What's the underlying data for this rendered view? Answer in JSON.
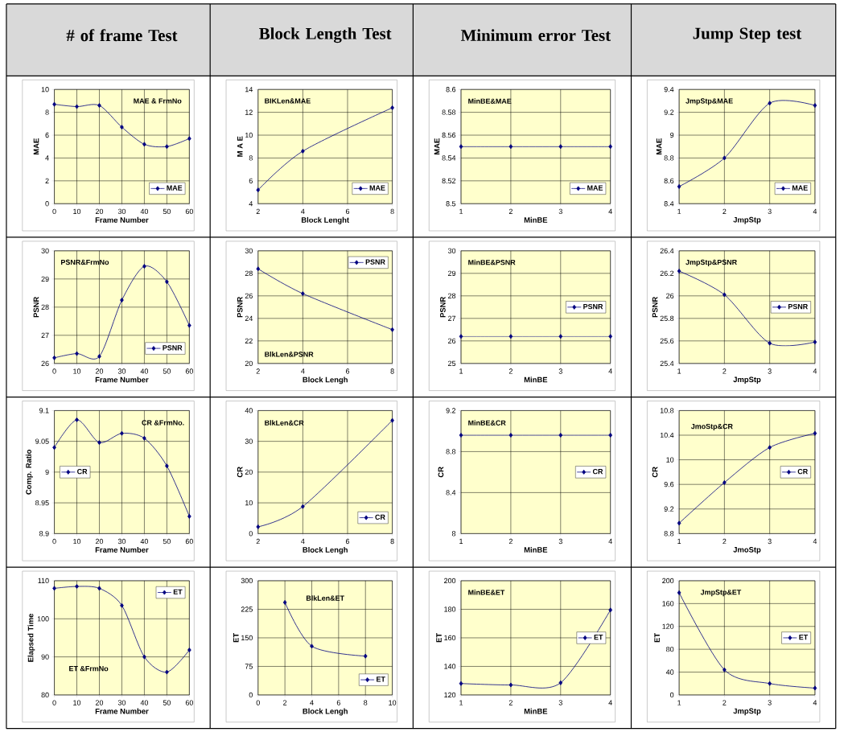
{
  "chart_data": [
    {
      "type": "line",
      "title": "# of frame Test",
      "xlabel": "Frame Number",
      "ylabel": "MAE",
      "annotations": [
        "MAE & FrmNo"
      ],
      "x": [
        0,
        10,
        20,
        30,
        40,
        50,
        60
      ],
      "xlim": [
        0,
        60
      ],
      "xticks": [
        0,
        10,
        20,
        30,
        40,
        50,
        60
      ],
      "ylim": [
        0,
        10
      ],
      "yticks": [
        0,
        2,
        4,
        6,
        8,
        10
      ],
      "grid": true,
      "legend": "bottom right",
      "marker": "diamond",
      "series": [
        {
          "name": "MAE",
          "color": "#000080",
          "values": [
            8.7,
            8.5,
            8.6,
            6.7,
            5.2,
            5.0,
            5.7
          ]
        }
      ]
    },
    {
      "type": "line",
      "title": "Block Length Test",
      "xlabel": "Block Lenght",
      "ylabel": "M A E",
      "annotations": [
        "BIKLen&MAE"
      ],
      "x": [
        2,
        4,
        8
      ],
      "xlim": [
        2,
        8
      ],
      "xticks": [
        2,
        4,
        6,
        8
      ],
      "ylim": [
        4,
        14
      ],
      "yticks": [
        4,
        6,
        8,
        10,
        12,
        14
      ],
      "grid": true,
      "legend": "bottom right",
      "marker": "diamond",
      "series": [
        {
          "name": "MAE",
          "color": "#000080",
          "values": [
            5.2,
            8.6,
            12.4
          ]
        }
      ]
    },
    {
      "type": "line",
      "title": "Minimum error Test",
      "xlabel": "MinBE",
      "ylabel": "MAE",
      "annotations": [
        "MinBE&MAE"
      ],
      "x": [
        1,
        2,
        3,
        4
      ],
      "xlim": [
        1,
        4
      ],
      "xticks": [
        1,
        2,
        3,
        4
      ],
      "ylim": [
        8.5,
        8.6
      ],
      "yticks": [
        8.5,
        8.52,
        8.54,
        8.56,
        8.58,
        8.6
      ],
      "grid": true,
      "legend": "bottom right",
      "marker": "diamond",
      "series": [
        {
          "name": "MAE",
          "color": "#000080",
          "values": [
            8.55,
            8.55,
            8.55,
            8.55
          ]
        }
      ]
    },
    {
      "type": "line",
      "title": "Jump Step test",
      "xlabel": "JmpStp",
      "ylabel": "MAE",
      "annotations": [
        "JmpStp&MAE"
      ],
      "x": [
        1,
        2,
        3,
        4
      ],
      "xlim": [
        1,
        4
      ],
      "xticks": [
        1,
        2,
        3,
        4
      ],
      "ylim": [
        8.4,
        9.4
      ],
      "yticks": [
        8.4,
        8.6,
        8.8,
        9,
        9.2,
        9.4
      ],
      "grid": true,
      "legend": "bottom right",
      "marker": "diamond",
      "series": [
        {
          "name": "MAE",
          "color": "#000080",
          "values": [
            8.55,
            8.8,
            9.28,
            9.26
          ]
        }
      ]
    },
    {
      "type": "line",
      "xlabel": "Frame Number",
      "ylabel": "PSNR",
      "annotations": [
        "PSNR&FrmNo"
      ],
      "x": [
        0,
        10,
        20,
        30,
        40,
        50,
        60
      ],
      "xlim": [
        0,
        60
      ],
      "xticks": [
        0,
        10,
        20,
        30,
        40,
        50,
        60
      ],
      "ylim": [
        26,
        30
      ],
      "yticks": [
        26,
        27,
        28,
        29,
        30
      ],
      "grid": true,
      "legend": "bottom right",
      "marker": "diamond",
      "series": [
        {
          "name": "PSNR",
          "color": "#000080",
          "values": [
            26.2,
            26.35,
            26.25,
            28.25,
            29.45,
            28.9,
            27.35
          ]
        }
      ]
    },
    {
      "type": "line",
      "xlabel": "Block Lengh",
      "ylabel": "PSNR",
      "annotations": [
        "BlkLen&PSNR"
      ],
      "x": [
        2,
        4,
        8
      ],
      "xlim": [
        2,
        8
      ],
      "xticks": [
        2,
        4,
        6,
        8
      ],
      "ylim": [
        20,
        30
      ],
      "yticks": [
        20,
        22,
        24,
        26,
        28,
        30
      ],
      "grid": true,
      "legend": "top right",
      "marker": "diamond",
      "series": [
        {
          "name": "PSNR",
          "color": "#000080",
          "values": [
            28.4,
            26.2,
            23.0
          ]
        }
      ]
    },
    {
      "type": "line",
      "xlabel": "MinBE",
      "ylabel": "PSNR",
      "annotations": [
        "MinBE&PSNR"
      ],
      "x": [
        1,
        2,
        3,
        4
      ],
      "xlim": [
        1,
        4
      ],
      "xticks": [
        1,
        2,
        3,
        4
      ],
      "ylim": [
        25,
        30
      ],
      "yticks": [
        25,
        26,
        27,
        28,
        29,
        30
      ],
      "grid": true,
      "legend": "right",
      "marker": "diamond",
      "series": [
        {
          "name": "PSNR",
          "color": "#000080",
          "values": [
            26.2,
            26.2,
            26.2,
            26.2
          ]
        }
      ]
    },
    {
      "type": "line",
      "xlabel": "JmpStp",
      "ylabel": "PSNR",
      "annotations": [
        "JmpStp&PSNR"
      ],
      "x": [
        1,
        2,
        3,
        4
      ],
      "xlim": [
        1,
        4
      ],
      "xticks": [
        1,
        2,
        3,
        4
      ],
      "ylim": [
        25.4,
        26.4
      ],
      "yticks": [
        25.4,
        25.6,
        25.8,
        26,
        26.2,
        26.4
      ],
      "grid": true,
      "legend": "right",
      "marker": "diamond",
      "series": [
        {
          "name": "PSNR",
          "color": "#000080",
          "values": [
            26.22,
            26.01,
            25.58,
            25.59
          ]
        }
      ]
    },
    {
      "type": "line",
      "xlabel": "Frame Number",
      "ylabel": "Comp. Ratio",
      "annotations": [
        "CR &FrmNo."
      ],
      "x": [
        0,
        10,
        20,
        30,
        40,
        50,
        60
      ],
      "xlim": [
        0,
        60
      ],
      "xticks": [
        0,
        10,
        20,
        30,
        40,
        50,
        60
      ],
      "ylim": [
        8.9,
        9.1
      ],
      "yticks": [
        8.9,
        8.95,
        9,
        9.05,
        9.1
      ],
      "grid": true,
      "legend": "left",
      "marker": "diamond",
      "series": [
        {
          "name": "CR",
          "color": "#000080",
          "values": [
            9.04,
            9.085,
            9.048,
            9.063,
            9.055,
            9.01,
            8.928
          ]
        }
      ]
    },
    {
      "type": "line",
      "xlabel": "Block Lengh",
      "ylabel": "CR",
      "annotations": [
        "BlkLen&CR"
      ],
      "x": [
        2,
        4,
        8
      ],
      "xlim": [
        2,
        8
      ],
      "xticks": [
        2,
        4,
        6,
        8
      ],
      "ylim": [
        0,
        40
      ],
      "yticks": [
        0,
        10,
        20,
        30,
        40
      ],
      "grid": true,
      "legend": "bottom right",
      "marker": "diamond",
      "series": [
        {
          "name": "CR",
          "color": "#000080",
          "values": [
            2.2,
            8.8,
            36.8
          ]
        }
      ]
    },
    {
      "type": "line",
      "xlabel": "MinBE",
      "ylabel": "CR",
      "annotations": [
        "MinBE&CR"
      ],
      "x": [
        1,
        2,
        3,
        4
      ],
      "xlim": [
        1,
        4
      ],
      "xticks": [
        1,
        2,
        3,
        4
      ],
      "ylim": [
        8,
        9.2
      ],
      "yticks": [
        8,
        8.4,
        8.8,
        9.2
      ],
      "grid": true,
      "legend": "right",
      "marker": "diamond",
      "series": [
        {
          "name": "CR",
          "color": "#000080",
          "values": [
            8.96,
            8.96,
            8.96,
            8.96
          ]
        }
      ]
    },
    {
      "type": "line",
      "xlabel": "JmoStp",
      "ylabel": "CR",
      "annotations": [
        "JmoStp&CR"
      ],
      "x": [
        1,
        2,
        3,
        4
      ],
      "xlim": [
        1,
        4
      ],
      "xticks": [
        1,
        2,
        3,
        4
      ],
      "ylim": [
        8.8,
        10.8
      ],
      "yticks": [
        8.8,
        9.2,
        9.6,
        10,
        10.4,
        10.8
      ],
      "grid": true,
      "legend": "right",
      "marker": "diamond",
      "series": [
        {
          "name": "CR",
          "color": "#000080",
          "values": [
            8.97,
            9.63,
            10.2,
            10.43
          ]
        }
      ]
    },
    {
      "type": "line",
      "xlabel": "Frame Number",
      "ylabel": "Elapsed Time",
      "annotations": [
        "ET &FrmNo"
      ],
      "x": [
        0,
        10,
        20,
        30,
        40,
        50,
        60
      ],
      "xlim": [
        0,
        60
      ],
      "xticks": [
        0,
        10,
        20,
        30,
        40,
        50,
        60
      ],
      "ylim": [
        80,
        110
      ],
      "yticks": [
        80,
        90,
        100,
        110
      ],
      "grid": true,
      "legend": "top right",
      "marker": "diamond",
      "series": [
        {
          "name": "ET",
          "color": "#000080",
          "values": [
            108,
            108.5,
            108,
            103.5,
            90,
            86,
            91.8
          ]
        }
      ]
    },
    {
      "type": "line",
      "xlabel": "Block Lengh",
      "ylabel": "ET",
      "annotations": [
        "BlkLen&ET"
      ],
      "x": [
        2,
        4,
        8
      ],
      "xlim": [
        0,
        10
      ],
      "xticks": [
        0,
        2,
        4,
        6,
        8,
        10
      ],
      "ylim": [
        0,
        300
      ],
      "yticks": [
        0,
        75,
        150,
        225,
        300
      ],
      "grid": true,
      "legend": "bottom right",
      "marker": "diamond",
      "series": [
        {
          "name": "ET",
          "color": "#000080",
          "values": [
            243,
            128,
            102
          ]
        }
      ]
    },
    {
      "type": "line",
      "xlabel": "MinBE",
      "ylabel": "ET",
      "annotations": [
        "MinBE&ET"
      ],
      "x": [
        1,
        2,
        3,
        4
      ],
      "xlim": [
        1,
        4
      ],
      "xticks": [
        1,
        2,
        3,
        4
      ],
      "ylim": [
        120,
        200
      ],
      "yticks": [
        120,
        140,
        160,
        180,
        200
      ],
      "grid": true,
      "legend": "right",
      "marker": "diamond",
      "series": [
        {
          "name": "ET",
          "color": "#000080",
          "values": [
            128,
            127,
            128.5,
            179.5
          ]
        }
      ]
    },
    {
      "type": "line",
      "xlabel": "JmpStp",
      "ylabel": "ET",
      "annotations": [
        "JmpStp&ET"
      ],
      "x": [
        1,
        2,
        3,
        4
      ],
      "xlim": [
        1,
        4
      ],
      "xticks": [
        1,
        2,
        3,
        4
      ],
      "ylim": [
        0,
        200
      ],
      "yticks": [
        0,
        40,
        80,
        120,
        160,
        200
      ],
      "grid": true,
      "legend": "right",
      "marker": "diamond",
      "series": [
        {
          "name": "ET",
          "color": "#000080",
          "values": [
            179,
            44,
            20,
            12
          ]
        }
      ]
    }
  ]
}
